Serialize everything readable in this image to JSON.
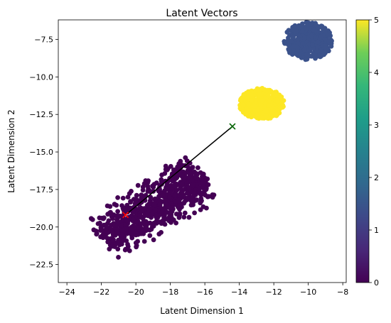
{
  "chart_data": {
    "type": "scatter",
    "title": "Latent Vectors",
    "xlabel": "Latent Dimension 1",
    "ylabel": "Latent Dimension 2",
    "xlim": [
      -24.5,
      -7.8
    ],
    "ylim": [
      -23.7,
      -6.2
    ],
    "grid": false,
    "xticks": [
      -24,
      -22,
      -20,
      -18,
      -16,
      -14,
      -12,
      -10,
      -8
    ],
    "yticks": [
      -22.5,
      -20.0,
      -17.5,
      -15.0,
      -12.5,
      -10.0,
      -7.5
    ],
    "xtick_labels": [
      "−24",
      "−22",
      "−20",
      "−18",
      "−16",
      "−14",
      "−12",
      "−10",
      "−8"
    ],
    "ytick_labels": [
      "−22.5",
      "−20.0",
      "−17.5",
      "−15.0",
      "−12.5",
      "−10.0",
      "−7.5"
    ],
    "colormap": "viridis",
    "colorbar": {
      "range": [
        0,
        5
      ],
      "ticks": [
        0,
        1,
        2,
        3,
        4,
        5
      ],
      "tick_labels": [
        "0",
        "1",
        "2",
        "3",
        "4",
        "5"
      ]
    },
    "clusters": [
      {
        "class": 0,
        "color": "#440154",
        "shape": "band",
        "from": [
          -21.8,
          -20.8
        ],
        "to": [
          -16.2,
          -16.6
        ],
        "half_width": 1.6,
        "n": 700
      },
      {
        "class": 1,
        "color": "#3b528b",
        "shape": "blob",
        "center": [
          -10.0,
          -7.6
        ],
        "radius": [
          1.4,
          1.25
        ],
        "n": 380
      },
      {
        "class": 5,
        "color": "#fde725",
        "shape": "blob",
        "center": [
          -12.7,
          -11.8
        ],
        "radius": [
          1.3,
          1.05
        ],
        "n": 380
      }
    ],
    "path": {
      "start": [
        -20.6,
        -19.2
      ],
      "end": [
        -14.4,
        -13.3
      ],
      "line_color": "#000000",
      "start_marker_color": "#ff0000",
      "end_marker_color": "#006400",
      "marker": "x"
    }
  }
}
